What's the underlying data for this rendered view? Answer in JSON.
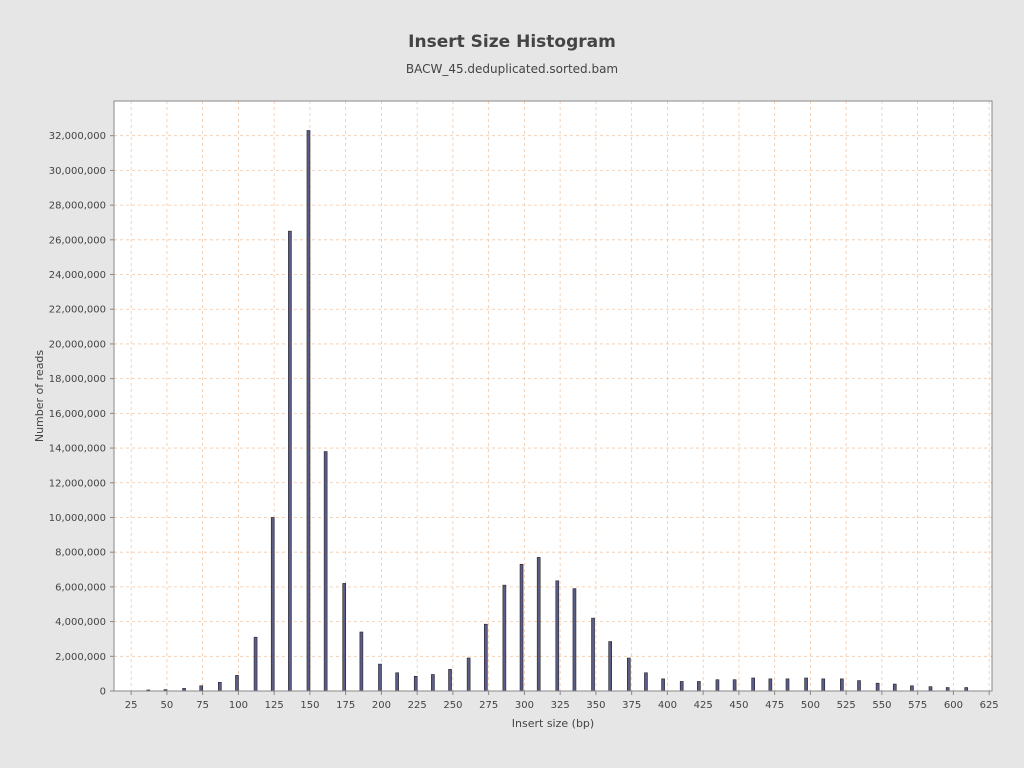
{
  "chart_data": {
    "type": "bar",
    "title": "Insert Size Histogram",
    "subtitle": "BACW_45.deduplicated.sorted.bam",
    "xlabel": "Insert size (bp)",
    "ylabel": "Number of reads",
    "xlim": [
      13,
      627
    ],
    "ylim": [
      0,
      34000000
    ],
    "x_ticks": [
      25,
      50,
      75,
      100,
      125,
      150,
      175,
      200,
      225,
      250,
      275,
      300,
      325,
      350,
      375,
      400,
      425,
      450,
      475,
      500,
      525,
      550,
      575,
      600,
      625
    ],
    "x_tick_labels": [
      "25",
      "50",
      "75",
      "100",
      "125",
      "150",
      "175",
      "200",
      "225",
      "250",
      "275",
      "300",
      "325",
      "350",
      "375",
      "400",
      "425",
      "450",
      "475",
      "500",
      "525",
      "550",
      "575",
      "600",
      "625"
    ],
    "y_ticks": [
      0,
      2000000,
      4000000,
      6000000,
      8000000,
      10000000,
      12000000,
      14000000,
      16000000,
      18000000,
      20000000,
      22000000,
      24000000,
      26000000,
      28000000,
      30000000,
      32000000
    ],
    "y_tick_labels": [
      "0",
      "2,000,000",
      "4,000,000",
      "6,000,000",
      "8,000,000",
      "10,000,000",
      "12,000,000",
      "14,000,000",
      "16,000,000",
      "18,000,000",
      "20,000,000",
      "22,000,000",
      "24,000,000",
      "26,000,000",
      "28,000,000",
      "30,000,000",
      "32,000,000"
    ],
    "grid": true,
    "bar_color": "#5c5c8a",
    "grid_color": "#f0c8a8",
    "x": [
      37,
      49,
      62,
      74,
      87,
      99,
      112,
      124,
      136,
      149,
      161,
      174,
      186,
      199,
      211,
      224,
      236,
      248,
      261,
      273,
      286,
      298,
      310,
      323,
      335,
      348,
      360,
      373,
      385,
      397,
      410,
      422,
      435,
      447,
      460,
      472,
      484,
      497,
      509,
      522,
      534,
      547,
      559,
      571,
      584,
      596,
      609
    ],
    "values": [
      60000,
      80000,
      150000,
      300000,
      500000,
      900000,
      3100000,
      10000000,
      26500000,
      32300000,
      13800000,
      6200000,
      3400000,
      1550000,
      1050000,
      850000,
      950000,
      1250000,
      1900000,
      3850000,
      6100000,
      7300000,
      7700000,
      6350000,
      5900000,
      4200000,
      2850000,
      1900000,
      1050000,
      700000,
      550000,
      550000,
      650000,
      650000,
      750000,
      700000,
      700000,
      750000,
      700000,
      700000,
      600000,
      450000,
      400000,
      300000,
      250000,
      200000,
      200000
    ]
  }
}
